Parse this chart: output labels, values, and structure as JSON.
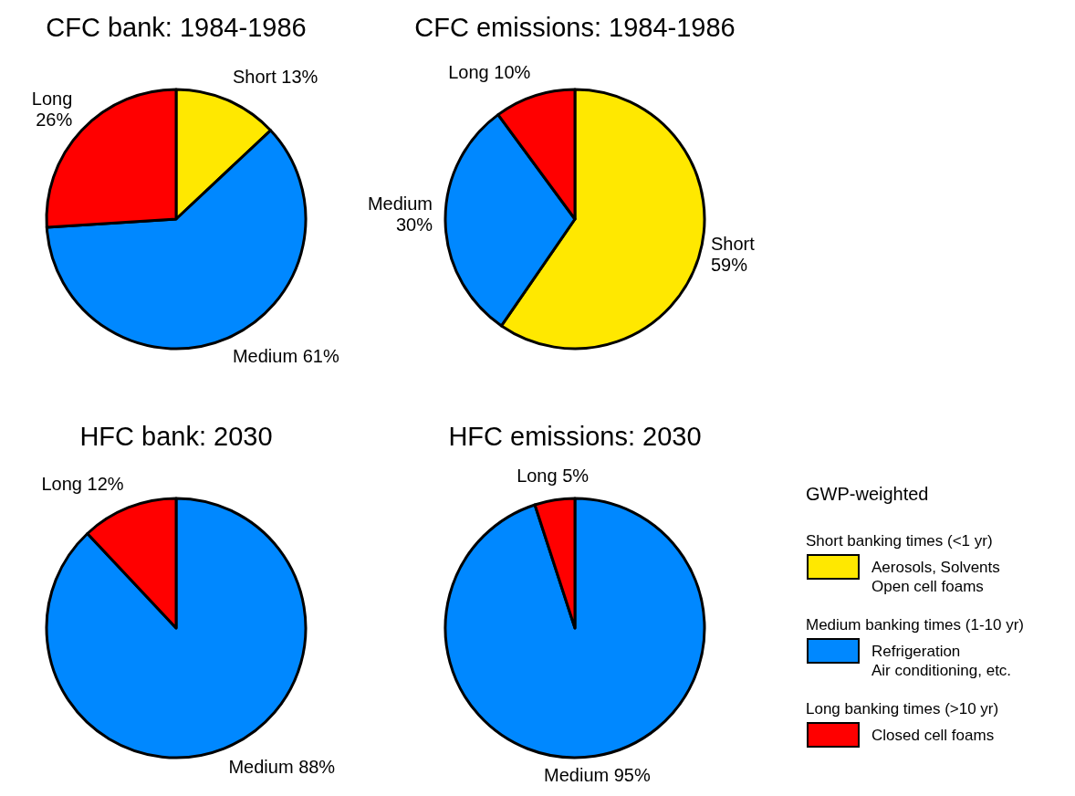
{
  "chart_data": [
    {
      "type": "pie",
      "title": "CFC bank: 1984-1986",
      "categories": [
        "Short",
        "Medium",
        "Long"
      ],
      "values": [
        13,
        61,
        26
      ],
      "value_labels": [
        "13%",
        "61%",
        "26%"
      ],
      "colors": [
        "#ffe800",
        "#0088ff",
        "#ff0000"
      ]
    },
    {
      "type": "pie",
      "title": "CFC emissions: 1984-1986",
      "categories": [
        "Short",
        "Medium",
        "Long"
      ],
      "values": [
        59,
        30,
        10
      ],
      "value_labels": [
        "59%",
        "30%",
        "10%"
      ],
      "colors": [
        "#ffe800",
        "#0088ff",
        "#ff0000"
      ]
    },
    {
      "type": "pie",
      "title": "HFC bank: 2030",
      "categories": [
        "Medium",
        "Long"
      ],
      "values": [
        88,
        12
      ],
      "value_labels": [
        "88%",
        "12%"
      ],
      "colors": [
        "#0088ff",
        "#ff0000"
      ]
    },
    {
      "type": "pie",
      "title": "HFC emissions: 2030",
      "categories": [
        "Medium",
        "Long"
      ],
      "values": [
        95,
        5
      ],
      "value_labels": [
        "95%",
        "5%"
      ],
      "colors": [
        "#0088ff",
        "#ff0000"
      ]
    },
    {
      "type": "other",
      "title": "GWP-weighted",
      "annotations": [
        "Short banking times (<1 yr)",
        "Aerosols, Solvents\nOpen cell foams",
        "Medium banking times (1-10 yr)",
        "Refrigeration\nAir conditioning, etc.",
        "Long banking times (>10 yr)",
        "Closed cell foams"
      ],
      "colors": [
        "#ffe800",
        "#0088ff",
        "#ff0000"
      ]
    }
  ]
}
